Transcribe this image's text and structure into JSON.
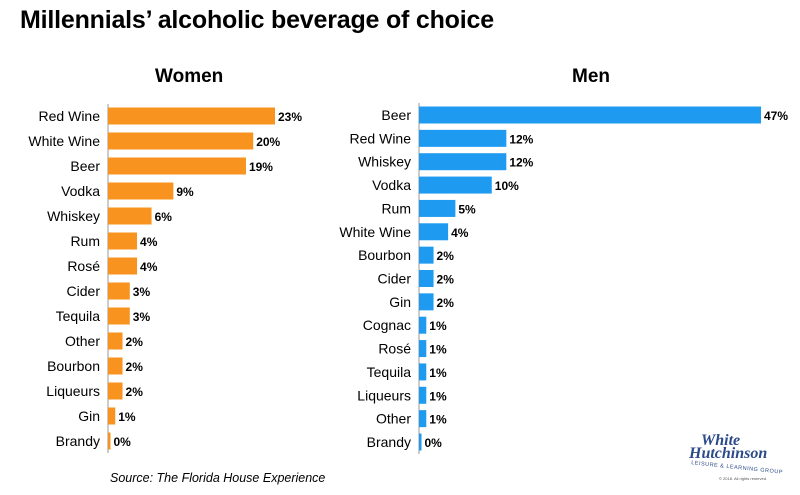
{
  "page": {
    "title": "Millennials’ alcoholic beverage of choice",
    "source": "Source: The Florida House Experience",
    "logo": {
      "line1": "White",
      "line2": "Hutchinson",
      "line3": "LEISURE & LEARNING GROUP",
      "line4": "© 2018. All rights reserved."
    }
  },
  "chart_data": [
    {
      "type": "bar",
      "orientation": "horizontal",
      "title": "Women",
      "color": "#f7931e",
      "unit": "%",
      "categories": [
        "Red Wine",
        "White Wine",
        "Beer",
        "Vodka",
        "Whiskey",
        "Rum",
        "Rosé",
        "Cider",
        "Tequila",
        "Other",
        "Bourbon",
        "Liqueurs",
        "Gin",
        "Brandy"
      ],
      "values": [
        23,
        20,
        19,
        9,
        6,
        4,
        4,
        3,
        3,
        2,
        2,
        2,
        1,
        0
      ],
      "value_labels": [
        "23%",
        "20%",
        "19%",
        "9%",
        "6%",
        "4%",
        "4%",
        "3%",
        "3%",
        "2%",
        "2%",
        "2%",
        "1%",
        "0%"
      ]
    },
    {
      "type": "bar",
      "orientation": "horizontal",
      "title": "Men",
      "color": "#1e9bf0",
      "unit": "%",
      "categories": [
        "Beer",
        "Red Wine",
        "Whiskey",
        "Vodka",
        "Rum",
        "White Wine",
        "Bourbon",
        "Cider",
        "Gin",
        "Cognac",
        "Rosé",
        "Tequila",
        "Liqueurs",
        "Other",
        "Brandy"
      ],
      "values": [
        47,
        12,
        12,
        10,
        5,
        4,
        2,
        2,
        2,
        1,
        1,
        1,
        1,
        1,
        0
      ],
      "value_labels": [
        "47%",
        "12%",
        "12%",
        "10%",
        "5%",
        "4%",
        "2%",
        "2%",
        "2%",
        "1%",
        "1%",
        "1%",
        "1%",
        "1%",
        "0%"
      ]
    }
  ]
}
